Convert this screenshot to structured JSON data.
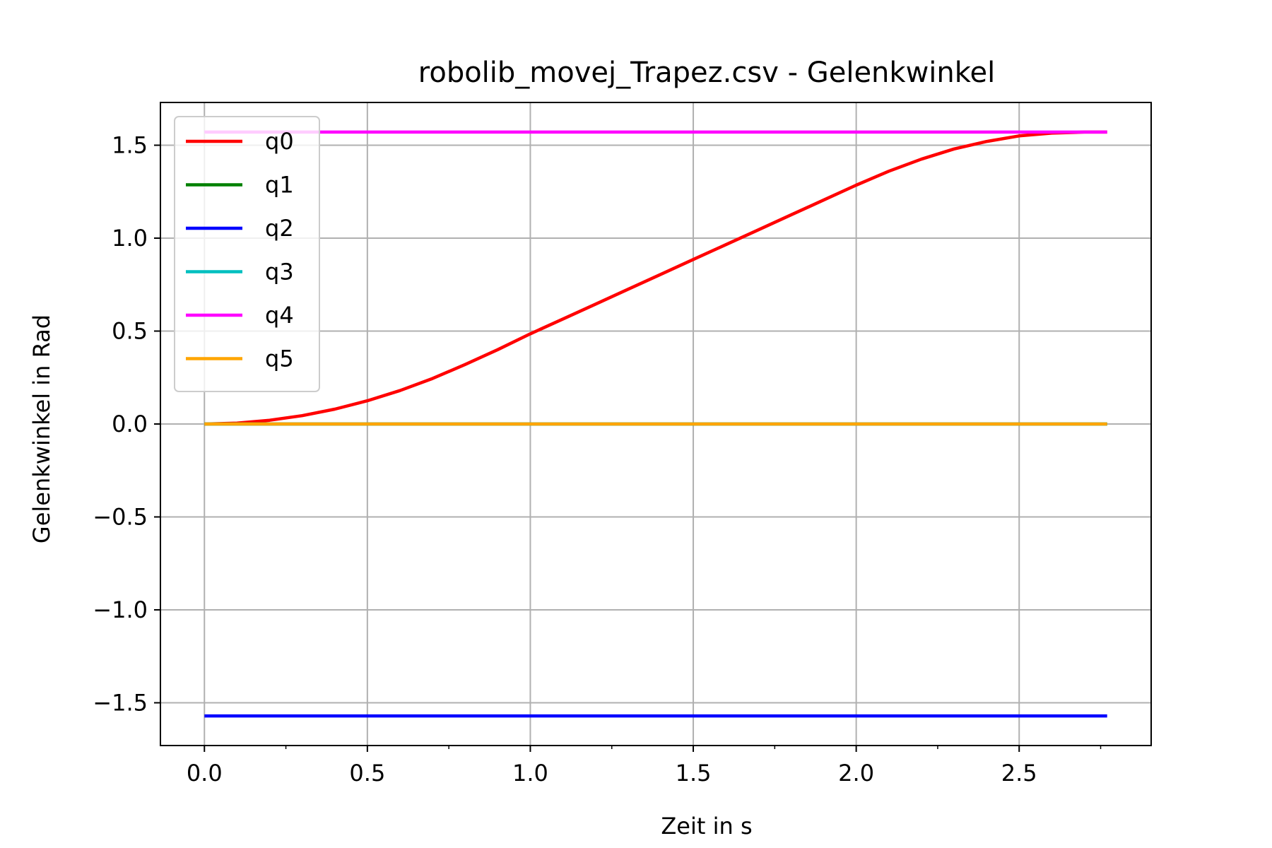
{
  "chart_data": {
    "type": "line",
    "title": "robolib_movej_Trapez.csv - Gelenkwinkel",
    "xlabel": "Zeit in s",
    "ylabel": "Gelenkwinkel in Rad",
    "xlim": [
      -0.135,
      2.905
    ],
    "ylim": [
      -1.73,
      1.73
    ],
    "x_ticks": [
      0.0,
      0.5,
      1.0,
      1.5,
      2.0,
      2.5
    ],
    "x_tick_labels": [
      "0.0",
      "0.5",
      "1.0",
      "1.5",
      "2.0",
      "2.5"
    ],
    "x_minor_ticks": [
      0.25,
      0.75,
      1.25,
      1.75,
      2.25,
      2.75
    ],
    "y_ticks": [
      -1.5,
      -1.0,
      -0.5,
      0.0,
      0.5,
      1.0,
      1.5
    ],
    "y_tick_labels": [
      "−1.5",
      "−1.0",
      "−0.5",
      "0.0",
      "0.5",
      "1.0",
      "1.5"
    ],
    "grid": true,
    "legend_position": "upper-left",
    "series": [
      {
        "name": "q0",
        "color": "#ff0000",
        "x": [
          0.0,
          0.1,
          0.2,
          0.3,
          0.4,
          0.5,
          0.6,
          0.7,
          0.8,
          0.9,
          1.0,
          1.1,
          1.2,
          1.3,
          1.4,
          1.5,
          1.6,
          1.7,
          1.8,
          1.9,
          2.0,
          2.1,
          2.2,
          2.3,
          2.4,
          2.5,
          2.6,
          2.7,
          2.77
        ],
        "y": [
          0.0,
          0.005,
          0.02,
          0.045,
          0.08,
          0.125,
          0.18,
          0.245,
          0.32,
          0.4,
          0.485,
          0.565,
          0.645,
          0.725,
          0.805,
          0.885,
          0.965,
          1.045,
          1.125,
          1.205,
          1.285,
          1.36,
          1.425,
          1.48,
          1.52,
          1.55,
          1.565,
          1.5705,
          1.5708
        ]
      },
      {
        "name": "q1",
        "color": "#008000",
        "x": [
          0.0,
          2.77
        ],
        "y": [
          0.0,
          0.0
        ]
      },
      {
        "name": "q2",
        "color": "#0000ff",
        "x": [
          0.0,
          2.77
        ],
        "y": [
          -1.5708,
          -1.5708
        ]
      },
      {
        "name": "q3",
        "color": "#00bfbf",
        "x": [
          0.0,
          2.77
        ],
        "y": [
          0.0,
          0.0
        ]
      },
      {
        "name": "q4",
        "color": "#ff00ff",
        "x": [
          0.0,
          2.77
        ],
        "y": [
          1.5708,
          1.5708
        ]
      },
      {
        "name": "q5",
        "color": "#ffa500",
        "x": [
          0.0,
          2.77
        ],
        "y": [
          0.0,
          0.0
        ]
      }
    ]
  }
}
